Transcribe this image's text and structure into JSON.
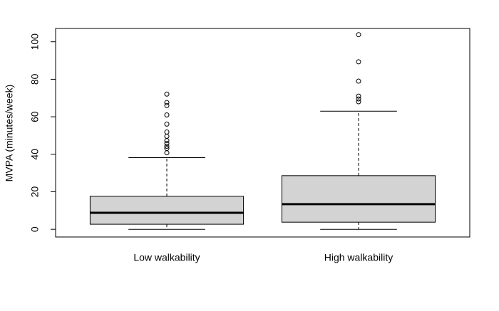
{
  "chart_data": {
    "type": "box",
    "y_label": "MVPA (minutes/week)",
    "categories": [
      "Low walkability",
      "High walkability"
    ],
    "color": "#d3d3d3",
    "boxes": [
      {
        "min": 0,
        "q1": 2.7,
        "median": 8.8,
        "q3": 17.6,
        "max": 38.2,
        "outliers": [
          40.8,
          43.1,
          44.3,
          45.8,
          47.3,
          49.6,
          51.9,
          56.1,
          61,
          66,
          67.6,
          72.1
        ]
      },
      {
        "min": 0,
        "q1": 3.8,
        "median": 13.4,
        "q3": 28.6,
        "max": 63,
        "outliers": [
          68,
          69.5,
          71,
          79,
          89.3,
          103.8
        ]
      }
    ],
    "ylim": [
      -4.1,
      107.1
    ],
    "yticks": [
      0,
      20,
      40,
      60,
      80,
      100
    ]
  }
}
